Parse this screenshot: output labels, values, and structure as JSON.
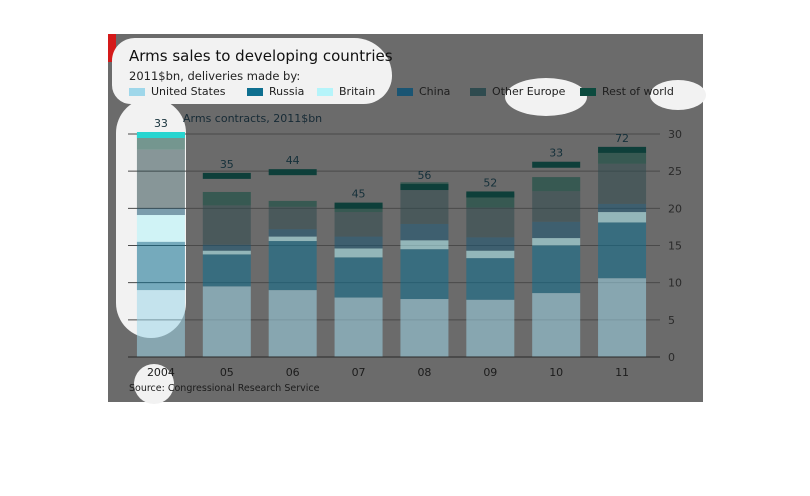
{
  "chart_data": {
    "type": "bar",
    "title": "Arms sales to developing countries",
    "subtitle": "2011$bn, deliveries made by:",
    "categories": [
      "2004",
      "05",
      "06",
      "07",
      "08",
      "09",
      "10",
      "11"
    ],
    "series": [
      {
        "name": "United States",
        "color": "#9fd7ea",
        "values": [
          9,
          9.5,
          9,
          8,
          7.8,
          7.7,
          8.6,
          10.6
        ]
      },
      {
        "name": "Russia",
        "color": "#0e6f8f",
        "values": [
          6.5,
          4.3,
          6.6,
          5.4,
          6.7,
          5.6,
          6.4,
          7.5
        ]
      },
      {
        "name": "Britain",
        "color": "#b5f4fa",
        "values": [
          3.6,
          0.5,
          0.6,
          1.2,
          1.2,
          1.0,
          1.0,
          1.4
        ]
      },
      {
        "name": "China",
        "color": "#1a5573",
        "values": [
          0.9,
          0.8,
          1.0,
          1.6,
          2.2,
          1.8,
          2.2,
          1.1
        ]
      },
      {
        "name": "Other Europe",
        "color": "#2f4b4f",
        "values": [
          7.9,
          5.3,
          3.0,
          3.3,
          4.6,
          4.0,
          4.1,
          5.4
        ]
      },
      {
        "name": "Rest of world",
        "color": "#0c4a3e",
        "values": [
          2.1,
          1.8,
          0.8,
          1.0,
          1.0,
          1.9,
          1.9,
          1.8
        ]
      }
    ],
    "contracts": {
      "label": "Arms contracts, 2011$bn",
      "values": [
        33,
        35,
        44,
        45,
        56,
        52,
        33,
        72
      ],
      "value_labels": [
        "33",
        "35",
        "44",
        "45",
        "56",
        "52",
        "33",
        "72"
      ],
      "marker_positions": [
        30,
        24.5,
        25,
        20.5,
        23,
        22,
        26,
        28
      ]
    },
    "ylim": [
      0,
      30
    ],
    "yticks": [
      "0",
      "5",
      "10",
      "15",
      "20",
      "25",
      "30"
    ],
    "xlabel": "",
    "ylabel": "",
    "grid": true,
    "legend_placement": "top",
    "source": "Source: Congressional Research Service",
    "colors": {
      "panel": "#6b6b6b",
      "accent": "#d41a1a",
      "highlight": "#27d5d0",
      "contract_marker": "#0e3f3a"
    }
  }
}
